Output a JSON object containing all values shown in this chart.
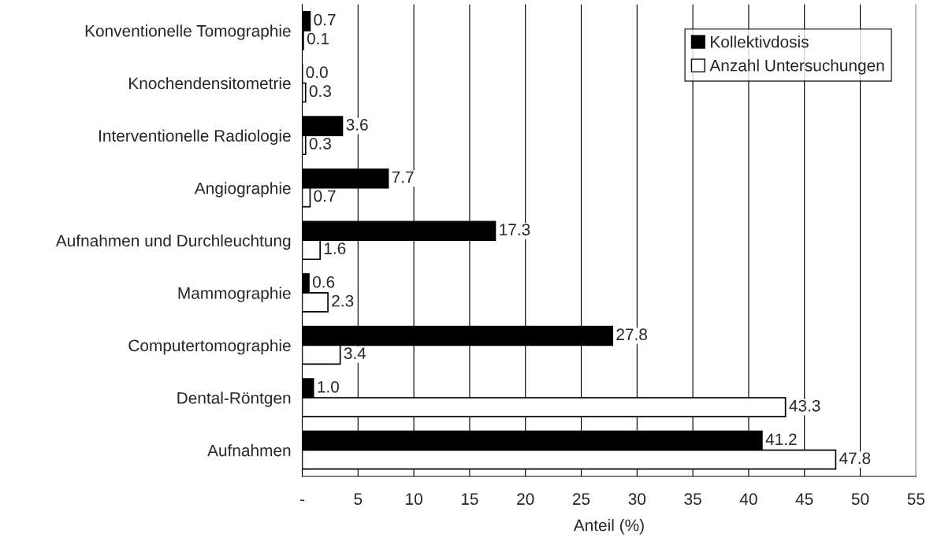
{
  "chart_data": {
    "type": "bar",
    "orientation": "horizontal",
    "xlabel": "Anteil (%)",
    "categories": [
      "Konventionelle Tomographie",
      "Knochendensitometrie",
      "Interventionelle Radiologie",
      "Angiographie",
      "Aufnahmen und Durchleuchtung",
      "Mammographie",
      "Computertomographie",
      "Dental-Röntgen",
      "Aufnahmen"
    ],
    "series": [
      {
        "name": "Kollektivdosis",
        "color": "#000000",
        "values": [
          0.7,
          0.0,
          3.6,
          7.7,
          17.3,
          0.6,
          27.8,
          1.0,
          41.2
        ],
        "value_labels": [
          "0.7",
          "0.0",
          "3.6",
          "7.7",
          "17.3",
          "0.6",
          "27.8",
          "1.0",
          "41.2"
        ]
      },
      {
        "name": "Anzahl Untersuchungen",
        "color": "#ffffff",
        "values": [
          0.1,
          0.3,
          0.3,
          0.7,
          1.6,
          2.3,
          3.4,
          43.3,
          47.8
        ],
        "value_labels": [
          "0.1",
          "0.3",
          "0.3",
          "0.7",
          "1.6",
          "2.3",
          "3.4",
          "43.3",
          "47.8"
        ]
      }
    ],
    "xlim": [
      0,
      55
    ],
    "xticks": [
      {
        "value": 0,
        "label": "-"
      },
      5,
      10,
      15,
      20,
      25,
      30,
      35,
      40,
      45,
      50,
      55
    ],
    "grid": "x",
    "legend": "top right"
  }
}
